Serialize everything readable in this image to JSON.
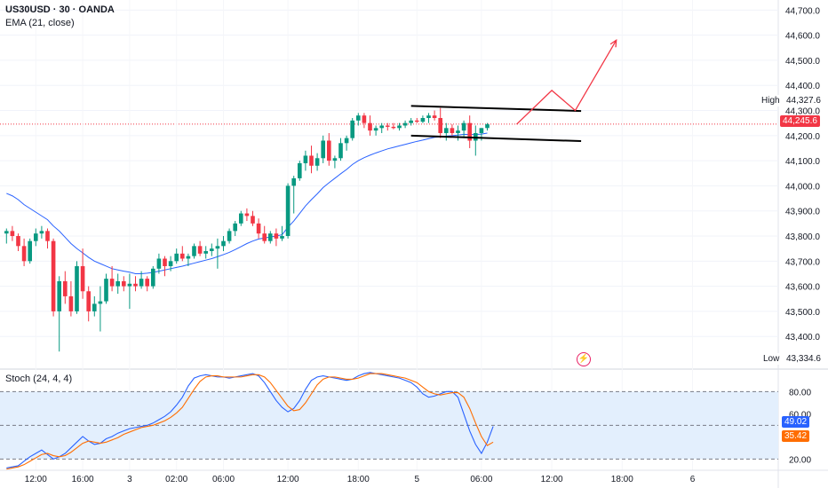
{
  "header": {
    "symbol_line": "US30USD · 30 · OANDA",
    "indicator_line": "EMA (21, close)"
  },
  "oscillator": {
    "label": "Stoch (24, 4, 4)",
    "k_value": "49.02",
    "d_value": "35.42",
    "levels": [
      80,
      20
    ],
    "k_color": "#2962ff",
    "d_color": "#ff6d00"
  },
  "markers": {
    "high_label": "High",
    "high_value": "44,327.6",
    "low_label": "Low",
    "low_value": "43,334.6",
    "last_price": "44,245.6"
  },
  "colors": {
    "up": "#089981",
    "down": "#f23645",
    "ema": "#2962ff",
    "arrow": "#f23645",
    "band_fill": "#e3effd"
  },
  "chart_data": [
    {
      "type": "candlestick",
      "title": "US30USD · 30 · OANDA",
      "ylim": [
        43270,
        44740
      ],
      "y_ticks": [
        43400,
        43500,
        43600,
        43700,
        43800,
        43900,
        44000,
        44100,
        44200,
        44300,
        44400,
        44500,
        44600,
        44700
      ],
      "y_tick_labels": [
        "43,400.0",
        "43,500.0",
        "43,600.0",
        "43,700.0",
        "43,800.0",
        "43,900.0",
        "44,000.0",
        "44,100.0",
        "44,200.0",
        "44,300.0",
        "44,400.0",
        "44,500.0",
        "44,600.0",
        "44,700.0"
      ],
      "x_tick_labels": [
        {
          "label": "12:00",
          "bar": 5
        },
        {
          "label": "16:00",
          "bar": 13
        },
        {
          "label": "3",
          "bar": 21
        },
        {
          "label": "02:00",
          "bar": 29
        },
        {
          "label": "06:00",
          "bar": 37
        },
        {
          "label": "12:00",
          "bar": 48
        },
        {
          "label": "18:00",
          "bar": 60
        },
        {
          "label": "5",
          "bar": 70
        },
        {
          "label": "06:00",
          "bar": 81
        },
        {
          "label": "12:00",
          "bar": 93
        },
        {
          "label": "18:00",
          "bar": 105
        },
        {
          "label": "6",
          "bar": 117
        }
      ],
      "x_range": [
        -0.5,
        125.5
      ],
      "candles": [
        [
          43810,
          43830,
          43770,
          43820
        ],
        [
          43820,
          43840,
          43780,
          43800
        ],
        [
          43800,
          43810,
          43740,
          43760
        ],
        [
          43760,
          43790,
          43680,
          43700
        ],
        [
          43700,
          43790,
          43690,
          43780
        ],
        [
          43780,
          43830,
          43760,
          43810
        ],
        [
          43810,
          43840,
          43790,
          43820
        ],
        [
          43820,
          43830,
          43750,
          43780
        ],
        [
          43780,
          43790,
          43480,
          43500
        ],
        [
          43500,
          43640,
          43340,
          43620
        ],
        [
          43620,
          43660,
          43530,
          43560
        ],
        [
          43560,
          43620,
          43480,
          43500
        ],
        [
          43500,
          43700,
          43490,
          43680
        ],
        [
          43680,
          43750,
          43550,
          43580
        ],
        [
          43580,
          43600,
          43460,
          43500
        ],
        [
          43500,
          43560,
          43480,
          43530
        ],
        [
          43530,
          43600,
          43420,
          43540
        ],
        [
          43540,
          43650,
          43530,
          43630
        ],
        [
          43630,
          43680,
          43580,
          43600
        ],
        [
          43600,
          43650,
          43570,
          43620
        ],
        [
          43620,
          43640,
          43580,
          43600
        ],
        [
          43600,
          43650,
          43510,
          43610
        ],
        [
          43610,
          43640,
          43580,
          43600
        ],
        [
          43600,
          43660,
          43590,
          43630
        ],
        [
          43630,
          43640,
          43580,
          43600
        ],
        [
          43600,
          43680,
          43590,
          43670
        ],
        [
          43670,
          43730,
          43650,
          43710
        ],
        [
          43710,
          43720,
          43640,
          43680
        ],
        [
          43680,
          43720,
          43660,
          43700
        ],
        [
          43700,
          43750,
          43690,
          43730
        ],
        [
          43730,
          43760,
          43700,
          43710
        ],
        [
          43710,
          43730,
          43680,
          43720
        ],
        [
          43720,
          43770,
          43710,
          43760
        ],
        [
          43760,
          43780,
          43720,
          43730
        ],
        [
          43730,
          43760,
          43710,
          43740
        ],
        [
          43740,
          43770,
          43720,
          43750
        ],
        [
          43750,
          43790,
          43670,
          43760
        ],
        [
          43760,
          43800,
          43740,
          43780
        ],
        [
          43780,
          43830,
          43770,
          43820
        ],
        [
          43820,
          43860,
          43800,
          43850
        ],
        [
          43850,
          43900,
          43840,
          43890
        ],
        [
          43890,
          43910,
          43860,
          43880
        ],
        [
          43880,
          43900,
          43840,
          43850
        ],
        [
          43850,
          43870,
          43790,
          43810
        ],
        [
          43810,
          43840,
          43770,
          43780
        ],
        [
          43780,
          43820,
          43770,
          43810
        ],
        [
          43810,
          43830,
          43760,
          43790
        ],
        [
          43790,
          43840,
          43780,
          43800
        ],
        [
          43800,
          44010,
          43790,
          44000
        ],
        [
          44000,
          44040,
          43890,
          44030
        ],
        [
          44030,
          44100,
          44020,
          44090
        ],
        [
          44090,
          44140,
          44060,
          44120
        ],
        [
          44120,
          44160,
          44050,
          44080
        ],
        [
          44080,
          44130,
          44060,
          44110
        ],
        [
          44110,
          44200,
          44090,
          44180
        ],
        [
          44180,
          44210,
          44080,
          44100
        ],
        [
          44100,
          44120,
          44070,
          44110
        ],
        [
          44110,
          44190,
          44100,
          44170
        ],
        [
          44170,
          44200,
          44140,
          44190
        ],
        [
          44190,
          44270,
          44180,
          44260
        ],
        [
          44260,
          44290,
          44240,
          44280
        ],
        [
          44280,
          44290,
          44230,
          44250
        ],
        [
          44250,
          44280,
          44200,
          44220
        ],
        [
          44220,
          44240,
          44200,
          44230
        ],
        [
          44230,
          44250,
          44210,
          44240
        ],
        [
          44240,
          44250,
          44220,
          44235
        ],
        [
          44235,
          44250,
          44225,
          44230
        ],
        [
          44230,
          44250,
          44220,
          44240
        ],
        [
          44240,
          44260,
          44230,
          44250
        ],
        [
          44250,
          44270,
          44240,
          44260
        ],
        [
          44260,
          44270,
          44250,
          44255
        ],
        [
          44255,
          44280,
          44250,
          44270
        ],
        [
          44270,
          44290,
          44250,
          44280
        ],
        [
          44280,
          44300,
          44260,
          44270
        ],
        [
          44270,
          44310,
          44190,
          44210
        ],
        [
          44210,
          44250,
          44180,
          44230
        ],
        [
          44230,
          44245,
          44200,
          44210
        ],
        [
          44210,
          44240,
          44180,
          44220
        ],
        [
          44220,
          44260,
          44190,
          44250
        ],
        [
          44250,
          44280,
          44150,
          44180
        ],
        [
          44180,
          44240,
          44120,
          44210
        ],
        [
          44210,
          44230,
          44180,
          44230
        ],
        [
          44230,
          44250,
          44220,
          44245
        ]
      ],
      "ema": [
        43970,
        43960,
        43945,
        43925,
        43910,
        43895,
        43880,
        43865,
        43840,
        43820,
        43795,
        43770,
        43750,
        43733,
        43715,
        43700,
        43690,
        43680,
        43670,
        43665,
        43660,
        43656,
        43650,
        43650,
        43652,
        43655,
        43660,
        43665,
        43670,
        43675,
        43680,
        43686,
        43692,
        43698,
        43704,
        43710,
        43718,
        43726,
        43735,
        43746,
        43758,
        43770,
        43780,
        43788,
        43792,
        43796,
        43800,
        43805,
        43835,
        43860,
        43890,
        43920,
        43945,
        43968,
        43993,
        44012,
        44030,
        44048,
        44065,
        44085,
        44100,
        44112,
        44122,
        44131,
        44139,
        44147,
        44153,
        44159,
        44165,
        44171,
        44177,
        44182,
        44188,
        44193,
        44195,
        44198,
        44200,
        44202,
        44205,
        44204,
        44204,
        44206,
        44210
      ],
      "annotations": [
        {
          "type": "trendline",
          "from": [
            69,
            44318
          ],
          "to": [
            98,
            44298
          ]
        },
        {
          "type": "trendline",
          "from": [
            69,
            44200
          ],
          "to": [
            98,
            44178
          ]
        },
        {
          "type": "arrow",
          "points": [
            [
              87,
              44245
            ],
            [
              93,
              44380
            ],
            [
              97,
              44300
            ],
            [
              104,
              44580
            ]
          ]
        },
        {
          "type": "hline",
          "value": 44245.6,
          "style": "dotted"
        }
      ]
    },
    {
      "type": "line",
      "title": "Stoch (24, 4, 4)",
      "ylim": [
        10,
        100
      ],
      "y_tick_labels": [
        "80.00",
        "60.00",
        "20.00"
      ],
      "y_ticks": [
        80,
        60,
        20
      ],
      "series": [
        {
          "name": "%K",
          "values": [
            12,
            13,
            14,
            18,
            22,
            25,
            28,
            24,
            20,
            22,
            25,
            30,
            35,
            40,
            36,
            33,
            34,
            38,
            40,
            43,
            45,
            47,
            48,
            49,
            50,
            52,
            55,
            58,
            62,
            68,
            75,
            85,
            92,
            94,
            95,
            94,
            93,
            93,
            92,
            93,
            94,
            95,
            96,
            94,
            88,
            80,
            72,
            66,
            62,
            65,
            72,
            82,
            90,
            93,
            94,
            93,
            92,
            91,
            90,
            91,
            94,
            96,
            97,
            96,
            95,
            94,
            93,
            92,
            90,
            88,
            84,
            78,
            75,
            76,
            78,
            80,
            80,
            75,
            60,
            45,
            33,
            25,
            35,
            49
          ]
        },
        {
          "name": "%D",
          "values": [
            11,
            12,
            13,
            15,
            18,
            21,
            24,
            25,
            23,
            22,
            23,
            26,
            30,
            34,
            36,
            35,
            34,
            35,
            37,
            39,
            42,
            44,
            46,
            48,
            49,
            50,
            52,
            54,
            57,
            61,
            66,
            74,
            82,
            89,
            93,
            94,
            94,
            93,
            93,
            93,
            93,
            94,
            95,
            95,
            93,
            88,
            81,
            74,
            67,
            63,
            64,
            70,
            78,
            86,
            91,
            93,
            93,
            92,
            91,
            91,
            92,
            94,
            96,
            96,
            96,
            95,
            94,
            93,
            92,
            90,
            88,
            84,
            80,
            78,
            77,
            78,
            79,
            79,
            75,
            65,
            52,
            40,
            32,
            35
          ]
        }
      ]
    }
  ]
}
